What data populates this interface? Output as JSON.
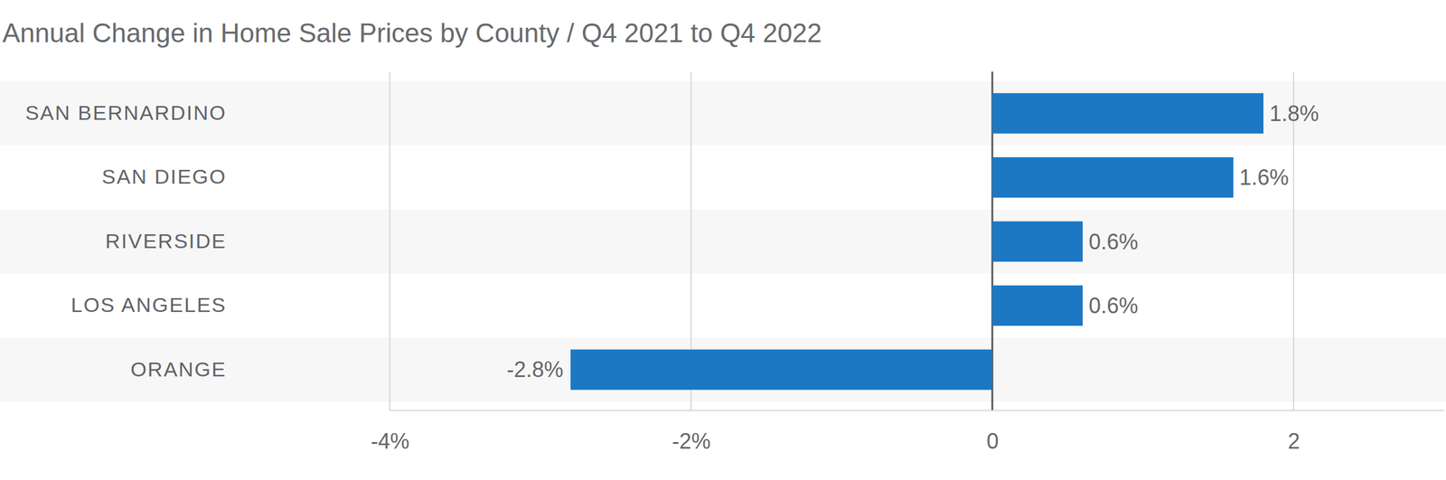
{
  "chart_data": {
    "type": "bar",
    "orientation": "horizontal",
    "title": "Annual Change in Home Sale Prices by County / Q4 2021 to Q4 2022",
    "categories": [
      "SAN BERNARDINO",
      "SAN DIEGO",
      "RIVERSIDE",
      "LOS ANGELES",
      "ORANGE"
    ],
    "values": [
      1.8,
      1.6,
      0.6,
      0.6,
      -2.8
    ],
    "value_labels": [
      "1.8%",
      "1.6%",
      "0.6%",
      "0.6%",
      "-2.8%"
    ],
    "color": "#1c78c3",
    "xlim": [
      -4,
      3
    ],
    "xticks": [
      {
        "value": -4,
        "label": "-4%"
      },
      {
        "value": -2,
        "label": "-2%"
      },
      0,
      2
    ],
    "grid": true,
    "data_labels": true
  }
}
